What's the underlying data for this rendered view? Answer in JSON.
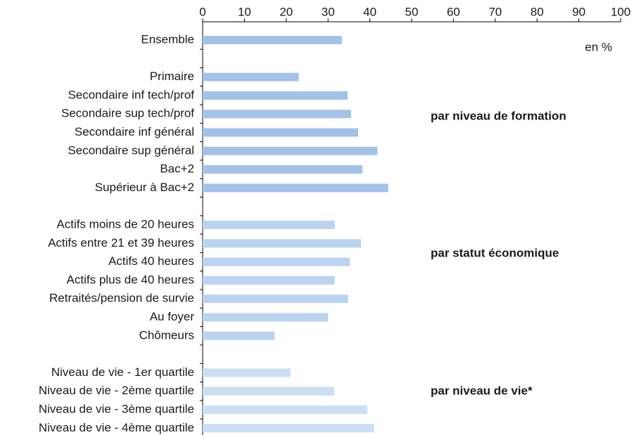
{
  "chart_data": {
    "type": "bar",
    "orientation": "horizontal",
    "categories": [
      "Ensemble",
      null,
      "Primaire",
      "Secondaire inf tech/prof",
      "Secondaire sup tech/prof",
      "Secondaire inf général",
      "Secondaire sup général",
      "Bac+2",
      "Supérieur à Bac+2",
      null,
      "Actifs moins de 20 heures",
      "Actifs entre 21 et 39 heures",
      "Actifs 40 heures",
      "Actifs plus de 40 heures",
      "Retraités/pension de survie",
      "Au foyer",
      "Chômeurs",
      null,
      "Niveau de vie - 1er quartile",
      "Niveau de vie - 2ème quartile",
      "Niveau de vie - 3ème quartile",
      "Niveau de vie - 4ème quartile"
    ],
    "values": [
      33.3,
      null,
      23,
      34.7,
      35.5,
      37.2,
      41.8,
      38.2,
      44.4,
      null,
      31.6,
      37.9,
      35.2,
      31.6,
      34.8,
      30,
      17.2,
      null,
      21,
      31.5,
      39.4,
      41
    ],
    "colors": [
      "#a3c2e8",
      null,
      "#a3c2e8",
      "#a3c2e8",
      "#a3c2e8",
      "#a3c2e8",
      "#a3c2e8",
      "#a3c2e8",
      "#a3c2e8",
      null,
      "#bad3ef",
      "#bad3ef",
      "#bad3ef",
      "#bad3ef",
      "#bad3ef",
      "#bad3ef",
      "#bad3ef",
      null,
      "#cbdef4",
      "#cbdef4",
      "#cbdef4",
      "#cbdef4"
    ],
    "xlim": [
      0,
      100
    ],
    "xticks": [
      0,
      10,
      20,
      30,
      40,
      50,
      60,
      70,
      80,
      90,
      100
    ],
    "annotations": [
      "en %",
      "par niveau de formation",
      "par statut économique",
      "par niveau de vie*"
    ]
  }
}
